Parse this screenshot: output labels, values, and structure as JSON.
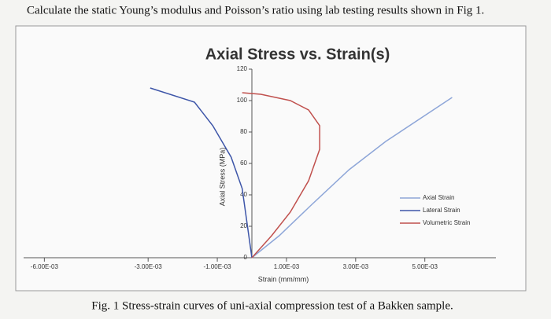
{
  "question": "Calculate the static Young’s modulus and Poisson’s ratio using lab testing results shown in Fig 1.",
  "caption": "Fig. 1 Stress-strain curves of uni-axial compression test of a Bakken sample.",
  "chart_data": {
    "type": "line",
    "title": "Axial Stress vs. Strain(s)",
    "x_label": "Strain (mm/mm)",
    "y_label": "Axial Stress (MPa)",
    "xlim": [
      -0.0066,
      0.0066
    ],
    "ylim": [
      0,
      120
    ],
    "xticks": [
      {
        "value": -0.006,
        "label": "-6.00E-03"
      },
      {
        "value": -0.003,
        "label": "-3.00E-03"
      },
      {
        "value": -0.001,
        "label": "-1.00E-03"
      },
      {
        "value": 0.001,
        "label": "1.00E-03"
      },
      {
        "value": 0.003,
        "label": "3.00E-03"
      },
      {
        "value": 0.005,
        "label": "5.00E-03"
      }
    ],
    "yticks": [
      0,
      20,
      40,
      60,
      80,
      100,
      120
    ],
    "legend": "right",
    "series": [
      {
        "name": "Axial Strain",
        "color": "#8ea6d8",
        "x": [
          0,
          0.00079,
          0.00174,
          0.00281,
          0.00387,
          0.00579
        ],
        "values": [
          0,
          14,
          34,
          56,
          74,
          102
        ]
      },
      {
        "name": "Lateral Strain",
        "color": "#3d55a8",
        "x": [
          0,
          -0.00028,
          -0.0006,
          -0.00113,
          -0.00166,
          -0.00294
        ],
        "values": [
          0,
          44,
          64,
          84,
          99,
          108
        ]
      },
      {
        "name": "Volumetric Strain",
        "color": "#c0504d",
        "x": [
          0,
          0.00057,
          0.00111,
          0.00164,
          0.00196,
          0.00196,
          0.00164,
          0.00111,
          0.00026,
          -0.00028
        ],
        "values": [
          0,
          14,
          29,
          49,
          69,
          84,
          94,
          100,
          104,
          105
        ]
      }
    ]
  }
}
